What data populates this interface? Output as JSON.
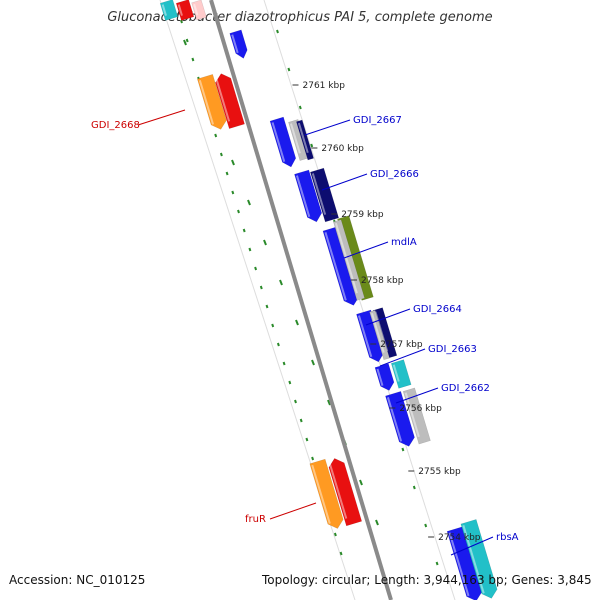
{
  "title": "Gluconacetobacter diazotrophicus PAI 5, complete genome",
  "footer": {
    "accession": "Accession: NC_010125",
    "summary": "Topology: circular; Length: 3,944,163 bp; Genes: 3,845"
  },
  "colors": {
    "background": "#ffffff",
    "backbone": "#8a8a8a",
    "blue_gene": "#1a1aee",
    "navy_gene": "#0d0d70",
    "olive_gene": "#6a8a1a",
    "gray_gene": "#bdbdbd",
    "cyan_gene": "#22c0c8",
    "orange_gene": "#ff9a22",
    "red_gene": "#e81010",
    "tick_green": "#2a8a2a",
    "label_blue": "#0000cc",
    "label_red": "#cc0000"
  },
  "ticks": [
    {
      "label": "2761 kbp"
    },
    {
      "label": "2760 kbp"
    },
    {
      "label": "2759 kbp"
    },
    {
      "label": "2758 kbp"
    },
    {
      "label": "2757 kbp"
    },
    {
      "label": "2756 kbp"
    },
    {
      "label": "2755 kbp"
    },
    {
      "label": "2754 kbp"
    }
  ],
  "gene_labels": [
    {
      "name": "GDI_2668",
      "color": "red"
    },
    {
      "name": "GDI_2667",
      "color": "blue"
    },
    {
      "name": "GDI_2666",
      "color": "blue"
    },
    {
      "name": "mdlA",
      "color": "blue"
    },
    {
      "name": "GDI_2664",
      "color": "blue"
    },
    {
      "name": "GDI_2663",
      "color": "blue"
    },
    {
      "name": "GDI_2662",
      "color": "blue"
    },
    {
      "name": "fruR",
      "color": "red"
    },
    {
      "name": "rbsA",
      "color": "blue"
    }
  ]
}
